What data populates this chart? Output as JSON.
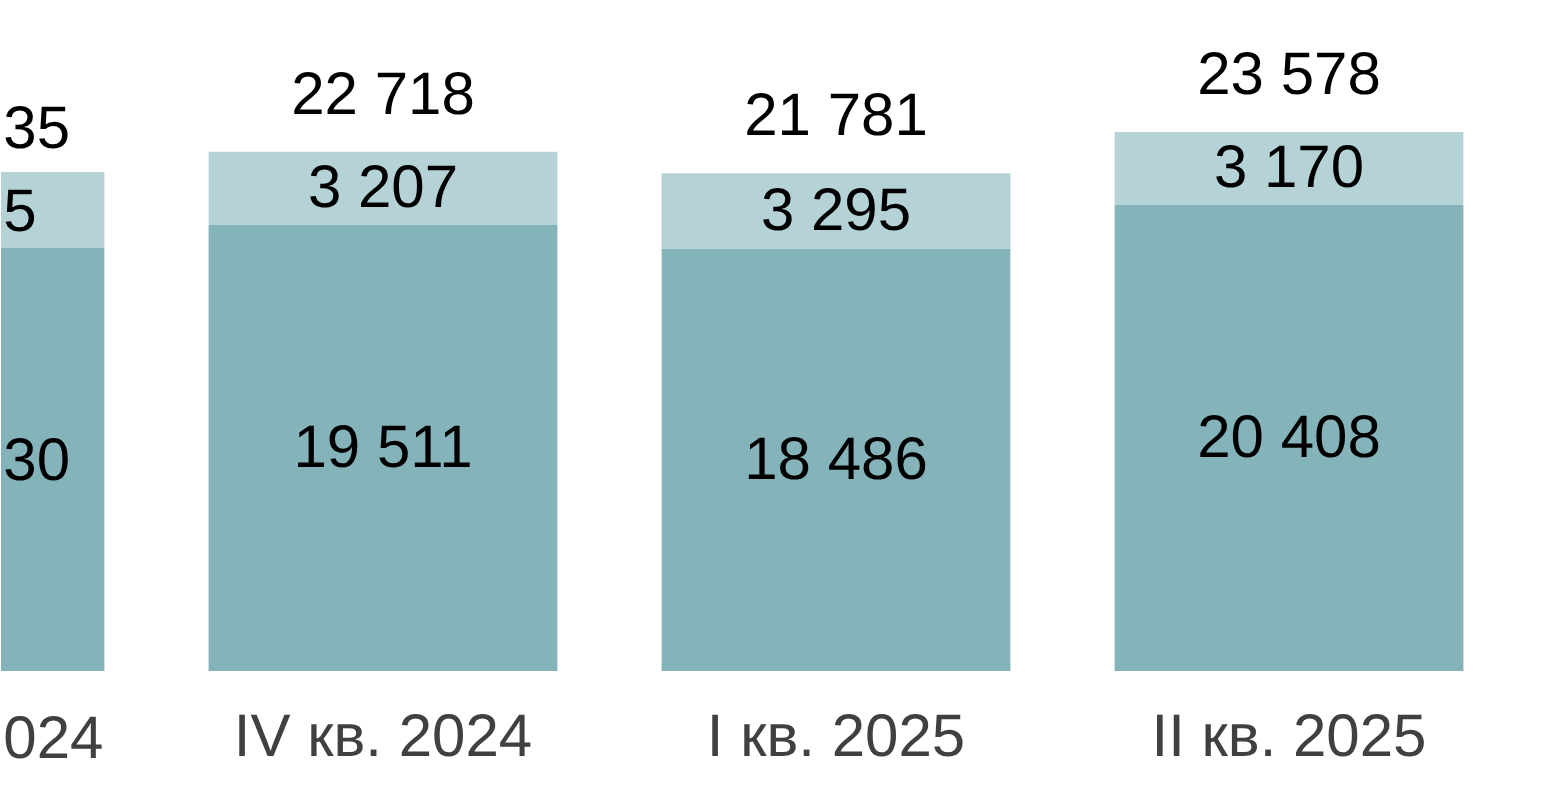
{
  "chart_data": {
    "type": "bar",
    "stacked": true,
    "categories": [
      "024",
      "IV кв. 2024",
      "I кв. 2025",
      "II кв. 2025"
    ],
    "series": [
      {
        "color": "#84b4b9",
        "values": [
          18530,
          19511,
          18486,
          20408
        ],
        "value_labels": [
          null,
          "19 511",
          "18 486",
          "20 408"
        ]
      },
      {
        "color": "#b5d3d6",
        "values": [
          3305,
          3207,
          3295,
          3170
        ],
        "value_labels": [
          null,
          "3 207",
          "3 295",
          "3 170"
        ]
      }
    ],
    "totals": [
      null,
      "22 718",
      "21 781",
      "23 578"
    ],
    "annotations": [
      "30",
      "5",
      {
        "text": "35",
        "x": "024",
        "y": 21835
      }
    ]
  }
}
